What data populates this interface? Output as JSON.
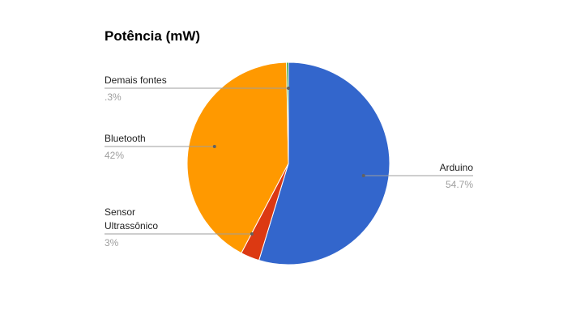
{
  "chart_data": {
    "type": "pie",
    "title": "Potência (mW)",
    "slices": [
      {
        "label": "Arduino",
        "label_lines": [
          "Arduino"
        ],
        "value": 54.7,
        "display": "54.7%",
        "color": "#3366cc"
      },
      {
        "label": "Sensor Ultrassônico",
        "label_lines": [
          "Sensor",
          "Ultrassônico"
        ],
        "value": 3,
        "display": "3%",
        "color": "#dc3912"
      },
      {
        "label": "Bluetooth",
        "label_lines": [
          "Bluetooth"
        ],
        "value": 42,
        "display": "42%",
        "color": "#ff9900"
      },
      {
        "label": "Demais fontes",
        "label_lines": [
          "Demais fontes"
        ],
        "value": 0.3,
        "display": ".3%",
        "color": "#109618"
      }
    ],
    "legend": "labeled"
  }
}
